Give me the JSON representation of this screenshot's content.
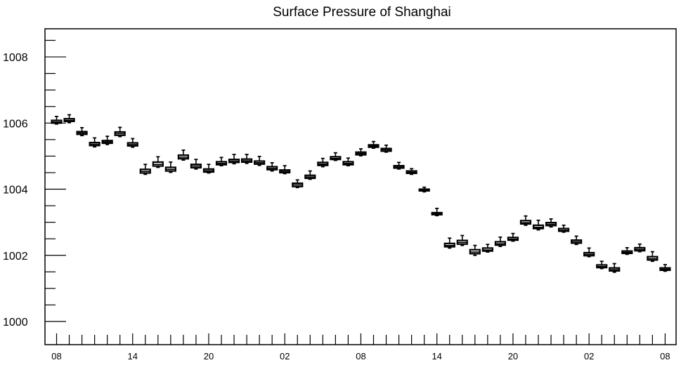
{
  "chart_data": {
    "type": "box",
    "title": "Surface Pressure of Shanghai",
    "xlabel": "",
    "ylabel": "",
    "ylim": [
      999.3,
      1008.85
    ],
    "yticks": [
      1000,
      1002,
      1004,
      1006,
      1008
    ],
    "ytick_labels": [
      "1000",
      "1002",
      "1004",
      "1006",
      "1008"
    ],
    "xtick_labels": [
      "08",
      "14",
      "20",
      "02",
      "08",
      "14",
      "20",
      "02",
      "08"
    ],
    "xtick_positions": [
      0,
      6,
      12,
      18,
      24,
      30,
      36,
      42,
      48
    ],
    "grid": false,
    "series": [
      {
        "values": [
          {
            "x": 0,
            "min": 1005.97,
            "q1": 1006.0,
            "median": 1006.03,
            "q3": 1006.08,
            "max": 1006.2
          },
          {
            "x": 1,
            "min": 1006.01,
            "q1": 1006.05,
            "median": 1006.08,
            "q3": 1006.13,
            "max": 1006.25
          },
          {
            "x": 2,
            "min": 1005.62,
            "q1": 1005.66,
            "median": 1005.7,
            "q3": 1005.74,
            "max": 1005.86
          },
          {
            "x": 3,
            "min": 1005.28,
            "q1": 1005.32,
            "median": 1005.36,
            "q3": 1005.41,
            "max": 1005.55
          },
          {
            "x": 4,
            "min": 1005.35,
            "q1": 1005.39,
            "median": 1005.43,
            "q3": 1005.47,
            "max": 1005.6
          },
          {
            "x": 5,
            "min": 1005.59,
            "q1": 1005.63,
            "median": 1005.68,
            "q3": 1005.73,
            "max": 1005.87
          },
          {
            "x": 6,
            "min": 1005.27,
            "q1": 1005.31,
            "median": 1005.35,
            "q3": 1005.4,
            "max": 1005.53
          },
          {
            "x": 7,
            "min": 1004.45,
            "q1": 1004.49,
            "median": 1004.54,
            "q3": 1004.6,
            "max": 1004.75
          },
          {
            "x": 8,
            "min": 1004.66,
            "q1": 1004.7,
            "median": 1004.75,
            "q3": 1004.82,
            "max": 1004.98
          },
          {
            "x": 9,
            "min": 1004.51,
            "q1": 1004.55,
            "median": 1004.6,
            "q3": 1004.66,
            "max": 1004.82
          },
          {
            "x": 10,
            "min": 1004.88,
            "q1": 1004.92,
            "median": 1004.97,
            "q3": 1005.03,
            "max": 1005.18
          },
          {
            "x": 11,
            "min": 1004.61,
            "q1": 1004.65,
            "median": 1004.7,
            "q3": 1004.75,
            "max": 1004.9
          },
          {
            "x": 12,
            "min": 1004.49,
            "q1": 1004.52,
            "median": 1004.56,
            "q3": 1004.61,
            "max": 1004.75
          },
          {
            "x": 13,
            "min": 1004.71,
            "q1": 1004.74,
            "median": 1004.78,
            "q3": 1004.83,
            "max": 1004.96
          },
          {
            "x": 14,
            "min": 1004.77,
            "q1": 1004.81,
            "median": 1004.85,
            "q3": 1004.9,
            "max": 1005.05
          },
          {
            "x": 15,
            "min": 1004.78,
            "q1": 1004.82,
            "median": 1004.86,
            "q3": 1004.91,
            "max": 1005.05
          },
          {
            "x": 16,
            "min": 1004.72,
            "q1": 1004.76,
            "median": 1004.8,
            "q3": 1004.85,
            "max": 1004.99
          },
          {
            "x": 17,
            "min": 1004.55,
            "q1": 1004.59,
            "median": 1004.63,
            "q3": 1004.68,
            "max": 1004.8
          },
          {
            "x": 18,
            "min": 1004.47,
            "q1": 1004.5,
            "median": 1004.54,
            "q3": 1004.58,
            "max": 1004.71
          },
          {
            "x": 19,
            "min": 1004.05,
            "q1": 1004.08,
            "median": 1004.13,
            "q3": 1004.18,
            "max": 1004.28
          },
          {
            "x": 20,
            "min": 1004.3,
            "q1": 1004.33,
            "median": 1004.37,
            "q3": 1004.42,
            "max": 1004.55
          },
          {
            "x": 21,
            "min": 1004.68,
            "q1": 1004.72,
            "median": 1004.76,
            "q3": 1004.81,
            "max": 1004.93
          },
          {
            "x": 22,
            "min": 1004.87,
            "q1": 1004.9,
            "median": 1004.93,
            "q3": 1004.98,
            "max": 1005.1
          },
          {
            "x": 23,
            "min": 1004.71,
            "q1": 1004.74,
            "median": 1004.78,
            "q3": 1004.83,
            "max": 1004.94
          },
          {
            "x": 24,
            "min": 1005.01,
            "q1": 1005.04,
            "median": 1005.08,
            "q3": 1005.12,
            "max": 1005.22
          },
          {
            "x": 25,
            "min": 1005.24,
            "q1": 1005.27,
            "median": 1005.3,
            "q3": 1005.34,
            "max": 1005.44
          },
          {
            "x": 26,
            "min": 1005.12,
            "q1": 1005.15,
            "median": 1005.19,
            "q3": 1005.23,
            "max": 1005.33
          },
          {
            "x": 27,
            "min": 1004.61,
            "q1": 1004.64,
            "median": 1004.67,
            "q3": 1004.71,
            "max": 1004.81
          },
          {
            "x": 28,
            "min": 1004.45,
            "q1": 1004.48,
            "median": 1004.51,
            "q3": 1004.55,
            "max": 1004.62
          },
          {
            "x": 29,
            "min": 1003.92,
            "q1": 1003.95,
            "median": 1003.97,
            "q3": 1004.0,
            "max": 1004.06
          },
          {
            "x": 30,
            "min": 1003.2,
            "q1": 1003.23,
            "median": 1003.26,
            "q3": 1003.29,
            "max": 1003.42
          },
          {
            "x": 31,
            "min": 1002.22,
            "q1": 1002.26,
            "median": 1002.3,
            "q3": 1002.36,
            "max": 1002.52
          },
          {
            "x": 32,
            "min": 1002.3,
            "q1": 1002.34,
            "median": 1002.39,
            "q3": 1002.45,
            "max": 1002.6
          },
          {
            "x": 33,
            "min": 1002.0,
            "q1": 1002.05,
            "median": 1002.1,
            "q3": 1002.17,
            "max": 1002.3
          },
          {
            "x": 34,
            "min": 1002.1,
            "q1": 1002.13,
            "median": 1002.16,
            "q3": 1002.22,
            "max": 1002.33
          },
          {
            "x": 35,
            "min": 1002.27,
            "q1": 1002.31,
            "median": 1002.35,
            "q3": 1002.41,
            "max": 1002.55
          },
          {
            "x": 36,
            "min": 1002.43,
            "q1": 1002.46,
            "median": 1002.49,
            "q3": 1002.54,
            "max": 1002.66
          },
          {
            "x": 37,
            "min": 1002.91,
            "q1": 1002.95,
            "median": 1002.99,
            "q3": 1003.05,
            "max": 1003.19
          },
          {
            "x": 38,
            "min": 1002.77,
            "q1": 1002.81,
            "median": 1002.85,
            "q3": 1002.91,
            "max": 1003.06
          },
          {
            "x": 39,
            "min": 1002.86,
            "q1": 1002.9,
            "median": 1002.94,
            "q3": 1002.99,
            "max": 1003.1
          },
          {
            "x": 40,
            "min": 1002.7,
            "q1": 1002.73,
            "median": 1002.76,
            "q3": 1002.81,
            "max": 1002.91
          },
          {
            "x": 41,
            "min": 1002.33,
            "q1": 1002.37,
            "median": 1002.41,
            "q3": 1002.46,
            "max": 1002.58
          },
          {
            "x": 42,
            "min": 1001.96,
            "q1": 1001.99,
            "median": 1002.03,
            "q3": 1002.08,
            "max": 1002.22
          },
          {
            "x": 43,
            "min": 1001.6,
            "q1": 1001.63,
            "median": 1001.66,
            "q3": 1001.71,
            "max": 1001.82
          },
          {
            "x": 44,
            "min": 1001.49,
            "q1": 1001.53,
            "median": 1001.57,
            "q3": 1001.62,
            "max": 1001.75
          },
          {
            "x": 45,
            "min": 1002.03,
            "q1": 1002.06,
            "median": 1002.09,
            "q3": 1002.13,
            "max": 1002.23
          },
          {
            "x": 46,
            "min": 1002.11,
            "q1": 1002.14,
            "median": 1002.18,
            "q3": 1002.23,
            "max": 1002.34
          },
          {
            "x": 47,
            "min": 1001.82,
            "q1": 1001.86,
            "median": 1001.9,
            "q3": 1001.96,
            "max": 1002.11
          },
          {
            "x": 48,
            "min": 1001.52,
            "q1": 1001.55,
            "median": 1001.58,
            "q3": 1001.62,
            "max": 1001.72
          }
        ]
      }
    ]
  }
}
